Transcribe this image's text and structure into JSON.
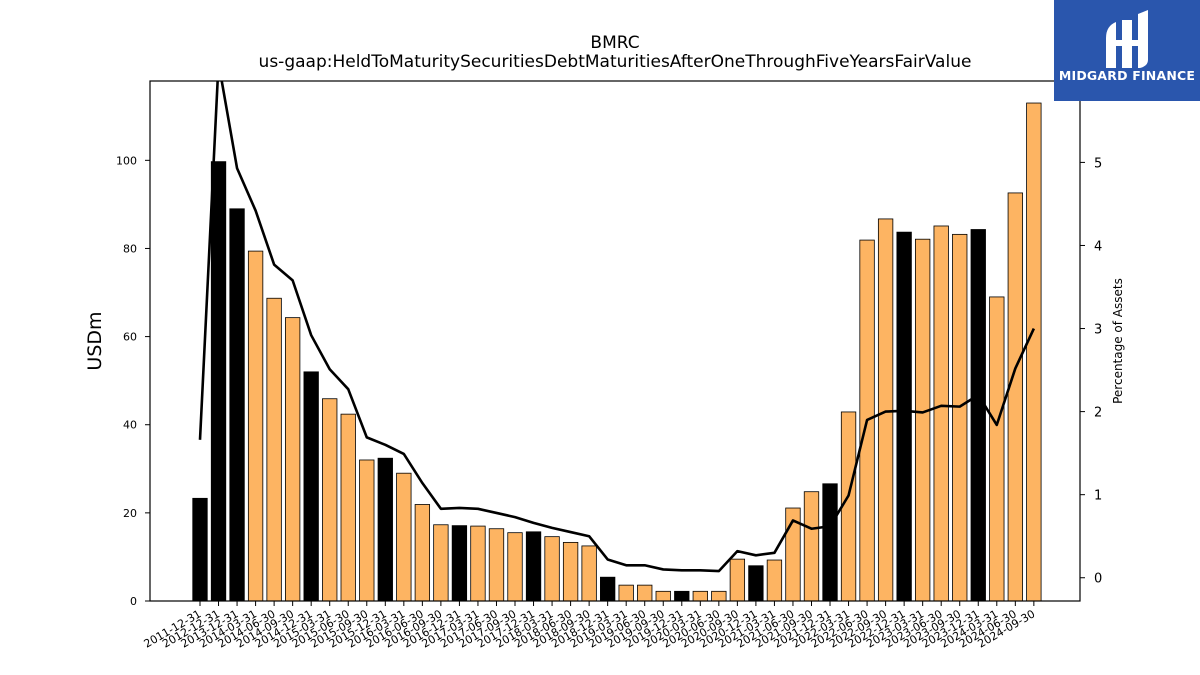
{
  "chart_data": {
    "type": "bar",
    "title": "BMRC",
    "subtitle": "us-gaap:HeldToMaturitySecuritiesDebtMaturitiesAfterOneThroughFiveYearsFairValue",
    "ylabel": "USDm",
    "y2label": "Percentage of Assets",
    "ylim": [
      0,
      118
    ],
    "y2lim": [
      -0.28,
      5.98
    ],
    "yticks": [
      0,
      20,
      40,
      60,
      80,
      100
    ],
    "y2ticks": [
      0,
      1,
      2,
      3,
      4,
      5
    ],
    "categories": [
      "2011-12-31",
      "2012-12-31",
      "2013-12-31",
      "2014-03-31",
      "2014-06-30",
      "2014-09-30",
      "2014-12-31",
      "2015-03-31",
      "2015-06-30",
      "2015-09-30",
      "2015-12-31",
      "2016-03-31",
      "2016-06-30",
      "2016-09-30",
      "2016-12-31",
      "2017-03-31",
      "2017-06-30",
      "2017-09-30",
      "2017-12-31",
      "2018-03-31",
      "2018-06-30",
      "2018-09-30",
      "2018-12-31",
      "2019-03-31",
      "2019-06-30",
      "2019-09-30",
      "2019-12-31",
      "2020-03-31",
      "2020-06-30",
      "2020-09-30",
      "2020-12-31",
      "2021-03-31",
      "2021-06-30",
      "2021-09-30",
      "2021-12-31",
      "2022-03-31",
      "2022-06-30",
      "2022-09-30",
      "2022-12-31",
      "2023-03-31",
      "2023-06-30",
      "2023-09-30",
      "2023-12-31",
      "2024-03-31",
      "2024-06-30",
      "2024-09-30"
    ],
    "series": [
      {
        "kind": "bar",
        "values": [
          23.3,
          99.7,
          89.0,
          79.4,
          68.7,
          64.3,
          52.0,
          45.9,
          42.4,
          32.0,
          32.4,
          29.0,
          21.9,
          17.3,
          17.1,
          17.0,
          16.4,
          15.5,
          15.7,
          14.6,
          13.3,
          12.5,
          5.4,
          3.6,
          3.6,
          2.2,
          2.2,
          2.2,
          2.2,
          9.5,
          8.0,
          9.3,
          21.1,
          24.8,
          26.6,
          42.9,
          81.9,
          86.7,
          83.7,
          82.1,
          85.1,
          83.2,
          84.3,
          69.0,
          92.6,
          113.0
        ],
        "highlight": [
          true,
          true,
          true,
          false,
          false,
          false,
          true,
          false,
          false,
          false,
          true,
          false,
          false,
          false,
          true,
          false,
          false,
          false,
          true,
          false,
          false,
          false,
          true,
          false,
          false,
          false,
          true,
          false,
          false,
          false,
          true,
          false,
          false,
          false,
          true,
          false,
          false,
          false,
          true,
          false,
          false,
          false,
          true,
          false,
          false,
          false
        ],
        "color": "#fdb462",
        "highlight_color": "#000000"
      },
      {
        "kind": "line",
        "axis": "right",
        "values": [
          1.66,
          6.2,
          4.93,
          4.42,
          3.77,
          3.58,
          2.92,
          2.51,
          2.27,
          1.69,
          1.6,
          1.49,
          1.14,
          0.83,
          0.84,
          0.83,
          0.78,
          0.73,
          0.66,
          0.6,
          0.55,
          0.5,
          0.22,
          0.15,
          0.15,
          0.1,
          0.09,
          0.09,
          0.08,
          0.32,
          0.27,
          0.3,
          0.69,
          0.59,
          0.62,
          0.99,
          1.9,
          2.0,
          2.01,
          1.99,
          2.07,
          2.06,
          2.2,
          1.84,
          2.52,
          3.0
        ],
        "color": "#000000"
      }
    ]
  },
  "logo": {
    "text": "MIDGARD FINANCE",
    "color": "#2a56ad"
  }
}
